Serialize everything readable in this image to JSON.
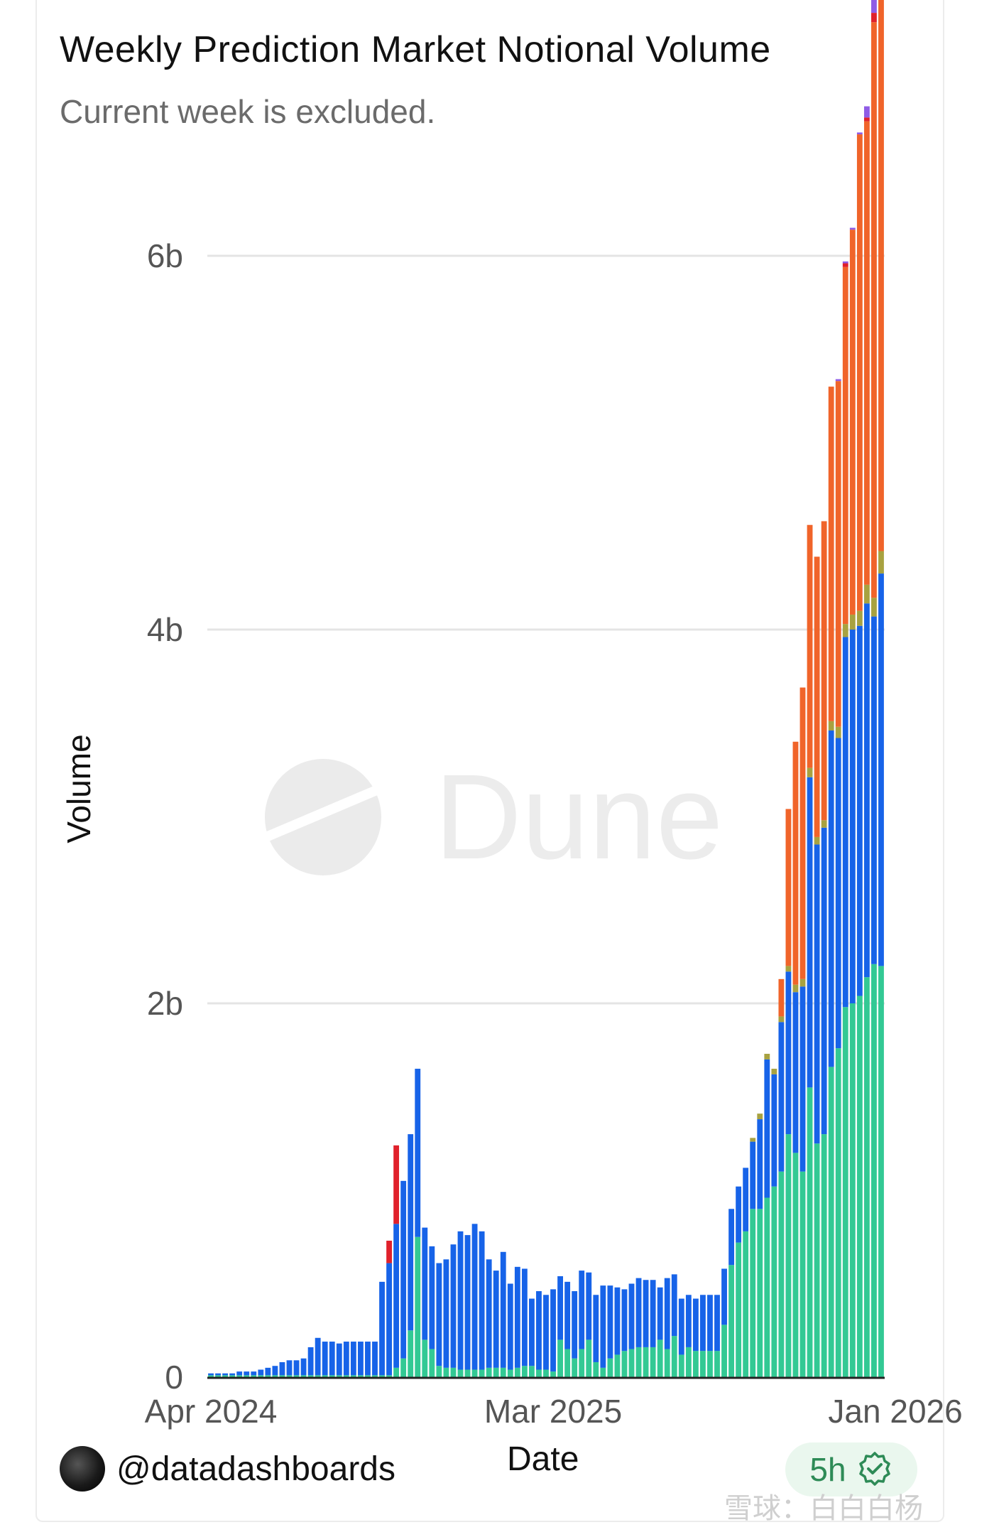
{
  "header": {
    "title": "Weekly Prediction Market Notional Volume",
    "subtitle": "Current week is excluded."
  },
  "footer": {
    "username": "@datadashboards",
    "x_axis_title": "Date",
    "freshness_badge": "5h",
    "badge_icon": "verified-check-icon",
    "watermark": "雪球：白白白杨"
  },
  "brand_watermark": "Dune",
  "colors": {
    "teal": "#33c994",
    "blue": "#1763e8",
    "orange": "#f0642a",
    "red": "#e0212b",
    "purple": "#8f5ce6",
    "olive": "#a8a240",
    "grid": "#e4e4e4"
  },
  "chart_data": {
    "type": "bar",
    "stacked": true,
    "title": "Weekly Prediction Market Notional Volume",
    "subtitle": "Current week is excluded.",
    "xlabel": "Date",
    "ylabel": "Volume",
    "ylim": [
      0,
      6300000000
    ],
    "y_ticks": [
      {
        "value": 0,
        "label": "0"
      },
      {
        "value": 2000000000,
        "label": "2b"
      },
      {
        "value": 4000000000,
        "label": "4b"
      },
      {
        "value": 6000000000,
        "label": "6b"
      }
    ],
    "x_ticks": [
      {
        "index": 0,
        "label": "Apr 2024"
      },
      {
        "index": 48,
        "label": "Mar 2025"
      },
      {
        "index": 96,
        "label": "Jan 2026"
      }
    ],
    "grid": true,
    "legend": "none",
    "series": [
      {
        "key": "teal",
        "values": [
          0.01,
          0.01,
          0.01,
          0.01,
          0.01,
          0.01,
          0.01,
          0.01,
          0.01,
          0.01,
          0.01,
          0.01,
          0.01,
          0.01,
          0.01,
          0.01,
          0.01,
          0.01,
          0.01,
          0.01,
          0.01,
          0.01,
          0.01,
          0.01,
          0.01,
          0.01,
          0.05,
          0.1,
          0.25,
          0.75,
          0.2,
          0.15,
          0.06,
          0.05,
          0.05,
          0.04,
          0.04,
          0.04,
          0.04,
          0.05,
          0.05,
          0.05,
          0.04,
          0.05,
          0.06,
          0.06,
          0.04,
          0.04,
          0.03,
          0.2,
          0.15,
          0.1,
          0.15,
          0.2,
          0.08,
          0.05,
          0.1,
          0.12,
          0.14,
          0.15,
          0.16,
          0.16,
          0.16,
          0.2,
          0.15,
          0.22,
          0.12,
          0.16,
          0.14,
          0.14,
          0.14,
          0.14,
          0.28,
          0.6,
          0.72,
          0.78,
          0.9,
          0.9,
          0.96,
          1.02,
          1.1,
          1.3,
          1.2,
          1.1,
          1.55,
          1.25,
          1.3,
          1.66,
          1.76,
          1.98,
          2.0,
          2.04,
          2.14,
          2.21,
          2.2
        ]
      },
      {
        "key": "blue",
        "values": [
          0.01,
          0.01,
          0.01,
          0.01,
          0.02,
          0.02,
          0.02,
          0.03,
          0.04,
          0.05,
          0.07,
          0.08,
          0.08,
          0.09,
          0.15,
          0.2,
          0.18,
          0.18,
          0.17,
          0.18,
          0.18,
          0.18,
          0.18,
          0.18,
          0.5,
          0.6,
          0.77,
          0.95,
          1.05,
          0.9,
          0.6,
          0.55,
          0.55,
          0.58,
          0.66,
          0.74,
          0.72,
          0.78,
          0.74,
          0.58,
          0.52,
          0.62,
          0.46,
          0.54,
          0.52,
          0.36,
          0.42,
          0.4,
          0.44,
          0.34,
          0.36,
          0.36,
          0.42,
          0.36,
          0.36,
          0.44,
          0.39,
          0.36,
          0.33,
          0.35,
          0.37,
          0.36,
          0.36,
          0.28,
          0.38,
          0.33,
          0.3,
          0.28,
          0.28,
          0.3,
          0.3,
          0.3,
          0.3,
          0.3,
          0.3,
          0.34,
          0.36,
          0.48,
          0.74,
          0.6,
          0.8,
          0.87,
          0.86,
          0.99,
          1.66,
          1.6,
          1.64,
          1.8,
          1.66,
          1.98,
          2.0,
          1.98,
          2.0,
          1.86,
          2.1
        ]
      },
      {
        "key": "orange",
        "values": [
          0,
          0,
          0,
          0,
          0,
          0,
          0,
          0,
          0,
          0,
          0,
          0,
          0,
          0,
          0,
          0,
          0,
          0,
          0,
          0,
          0,
          0,
          0,
          0,
          0,
          0,
          0,
          0,
          0,
          0,
          0,
          0,
          0,
          0,
          0,
          0,
          0,
          0,
          0,
          0,
          0,
          0,
          0,
          0,
          0,
          0,
          0,
          0,
          0,
          0,
          0,
          0,
          0,
          0,
          0,
          0,
          0,
          0,
          0,
          0,
          0,
          0,
          0,
          0,
          0,
          0,
          0,
          0,
          0,
          0,
          0,
          0,
          0,
          0,
          0,
          0,
          0,
          0,
          0,
          0,
          0.2,
          0.84,
          1.3,
          1.56,
          1.3,
          1.5,
          1.6,
          1.79,
          1.85,
          1.91,
          2.06,
          2.55,
          2.48,
          3.08,
          3.21
        ]
      },
      {
        "key": "red",
        "values": [
          0,
          0,
          0,
          0,
          0,
          0,
          0,
          0,
          0,
          0,
          0,
          0,
          0,
          0,
          0,
          0,
          0,
          0,
          0,
          0,
          0,
          0,
          0,
          0,
          0,
          0.12,
          0.42,
          0,
          0,
          0,
          0,
          0,
          0,
          0,
          0,
          0,
          0,
          0,
          0,
          0,
          0,
          0,
          0,
          0,
          0,
          0,
          0,
          0,
          0,
          0,
          0,
          0,
          0,
          0,
          0,
          0,
          0,
          0,
          0,
          0,
          0,
          0,
          0,
          0,
          0,
          0,
          0,
          0,
          0,
          0,
          0,
          0,
          0,
          0,
          0,
          0,
          0,
          0,
          0,
          0,
          0,
          0,
          0,
          0,
          0,
          0,
          0,
          0,
          0,
          0.02,
          0,
          0,
          0.02,
          0.05,
          0.04,
          0.04,
          0.03,
          0.03,
          0.04,
          0.04,
          0.04,
          0.04,
          0.03,
          0.02
        ]
      },
      {
        "key": "purple",
        "values": [
          0,
          0,
          0,
          0,
          0,
          0,
          0,
          0,
          0,
          0,
          0,
          0,
          0,
          0,
          0,
          0,
          0,
          0,
          0,
          0,
          0,
          0,
          0,
          0,
          0,
          0,
          0,
          0,
          0,
          0,
          0,
          0,
          0,
          0,
          0,
          0,
          0,
          0,
          0,
          0,
          0,
          0,
          0,
          0,
          0,
          0,
          0,
          0,
          0,
          0,
          0,
          0,
          0,
          0,
          0,
          0,
          0,
          0,
          0,
          0,
          0,
          0,
          0,
          0,
          0,
          0,
          0,
          0,
          0,
          0,
          0,
          0,
          0,
          0,
          0,
          0,
          0,
          0,
          0,
          0,
          0,
          0,
          0,
          0,
          0,
          0,
          0,
          0,
          0.01,
          0.01,
          0.01,
          0.01,
          0.06,
          0.1,
          0.11,
          0.14,
          0.17
        ]
      },
      {
        "key": "olive",
        "values": [
          0,
          0,
          0,
          0,
          0,
          0,
          0,
          0,
          0,
          0,
          0,
          0,
          0,
          0,
          0,
          0,
          0,
          0,
          0,
          0,
          0,
          0,
          0,
          0,
          0,
          0,
          0,
          0,
          0,
          0,
          0,
          0,
          0,
          0,
          0,
          0,
          0,
          0,
          0,
          0,
          0,
          0,
          0,
          0,
          0,
          0,
          0,
          0,
          0,
          0,
          0,
          0,
          0,
          0,
          0,
          0,
          0,
          0,
          0,
          0,
          0,
          0,
          0,
          0,
          0,
          0,
          0,
          0,
          0,
          0,
          0,
          0,
          0,
          0,
          0,
          0,
          0.02,
          0.03,
          0.03,
          0.03,
          0.03,
          0.03,
          0.04,
          0.04,
          0.05,
          0.04,
          0.04,
          0.05,
          0.06,
          0.07,
          0.08,
          0.08,
          0.1,
          0.1,
          0.12
        ]
      }
    ],
    "value_unit": "b"
  }
}
